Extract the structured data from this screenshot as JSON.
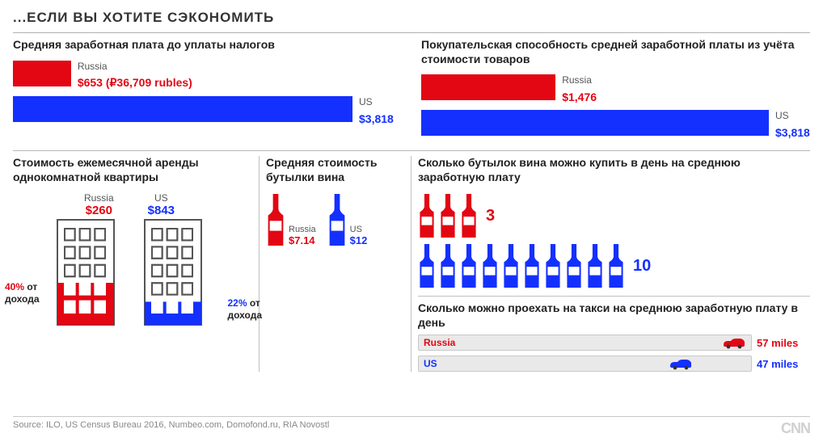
{
  "title": "...ЕСЛИ ВЫ ХОТИТЕ СЭКОНОМИТЬ",
  "colors": {
    "russia": "#e30613",
    "us": "#1430ff",
    "text": "#222222",
    "muted": "#666666",
    "track": "#e9e9e9",
    "border": "#b8b8b8"
  },
  "salary": {
    "title": "Средняя заработная плата до уплаты налогов",
    "type": "bar",
    "max": 3818,
    "bars": [
      {
        "country": "Russia",
        "value_label": "$653 (₽36,709 rubles)",
        "value": 653,
        "color": "#e30613",
        "text_color": "#e30613"
      },
      {
        "country": "US",
        "value_label": "$3,818",
        "value": 3818,
        "color": "#1430ff",
        "text_color": "#1430ff"
      }
    ]
  },
  "purchasing": {
    "title": "Покупательская способность средней заработной платы из учёта стоимости товаров",
    "type": "bar",
    "max": 3818,
    "bars": [
      {
        "country": "Russia",
        "value_label": "$1,476",
        "value": 1476,
        "color": "#e30613",
        "text_color": "#e30613"
      },
      {
        "country": "US",
        "value_label": "$3,818",
        "value": 3818,
        "color": "#1430ff",
        "text_color": "#1430ff"
      }
    ]
  },
  "rent": {
    "title": "Стоимость ежемесячной аренды однокомнатной квартиры",
    "russia": {
      "country": "Russia",
      "value": "$260",
      "pct": "40%",
      "suffix": " от дохода",
      "fill_ratio": 0.4,
      "color": "#e30613"
    },
    "us": {
      "country": "US",
      "value": "$843",
      "pct": "22%",
      "suffix": " от дохода",
      "fill_ratio": 0.22,
      "color": "#1430ff"
    }
  },
  "wine": {
    "title": "Средняя стоимость бутылки вина",
    "russia": {
      "country": "Russia",
      "value": "$7.14",
      "color": "#e30613"
    },
    "us": {
      "country": "US",
      "value": "$12",
      "color": "#1430ff"
    }
  },
  "bottles": {
    "title": "Сколько бутылок вина можно купить в день на среднюю заработную плату",
    "russia": {
      "count": 3,
      "color": "#e30613"
    },
    "us": {
      "count": 10,
      "color": "#1430ff"
    }
  },
  "taxi": {
    "title": "Сколько можно проехать на такси на среднюю заработную плату в день",
    "max_miles": 57,
    "russia": {
      "country": "Russia",
      "miles": 57,
      "label": "57 miles",
      "color": "#e30613"
    },
    "us": {
      "country": "US",
      "miles": 47,
      "label": "47 miles",
      "color": "#1430ff"
    }
  },
  "footer": {
    "source": "Source: ILO, US Census Bureau 2016, Numbeo.com, Domofond.ru, RIA Novostl",
    "brand": "CNN"
  }
}
